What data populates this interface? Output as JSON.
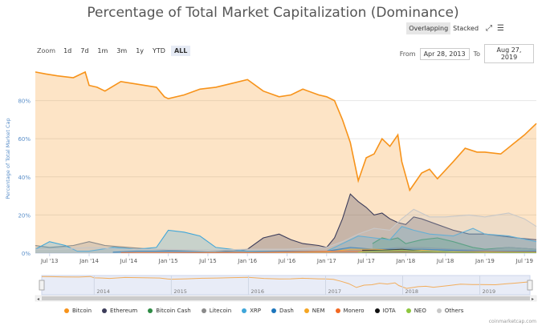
{
  "header": {
    "title": "Percentage of Total Market Capitalization (Dominance)",
    "overlapping": "Overlapping",
    "stacked": "Stacked",
    "expand_icon": "expand-icon",
    "menu_icon": "hamburger-menu-icon"
  },
  "zoom": {
    "label": "Zoom",
    "buttons": [
      "1d",
      "7d",
      "1m",
      "3m",
      "1y",
      "YTD",
      "ALL"
    ],
    "selected": "ALL"
  },
  "range": {
    "from_label": "From",
    "from": "Apr 28, 2013",
    "to_label": "To",
    "to": "Aug 27, 2019"
  },
  "credit": "coinmarketcap.com",
  "navigator_years": [
    "2014",
    "2015",
    "2016",
    "2017",
    "2018",
    "2019"
  ],
  "chart_data": {
    "type": "area",
    "title": "Percentage of Total Market Capitalization (Dominance)",
    "ylabel": "Percentage of Total Market Cap",
    "ylim": [
      0,
      100
    ],
    "yticks": [
      0,
      20,
      40,
      60,
      80
    ],
    "ytick_labels": [
      "0%",
      "20%",
      "40%",
      "60%",
      "80%"
    ],
    "xlim": [
      2013.32,
      2019.65
    ],
    "xticks": [
      2013.5,
      2014.0,
      2014.5,
      2015.0,
      2015.5,
      2016.0,
      2016.5,
      2017.0,
      2017.5,
      2018.0,
      2018.5,
      2019.0,
      2019.5
    ],
    "xtick_labels": [
      "Jul '13",
      "Jan '14",
      "Jul '14",
      "Jan '15",
      "Jul '15",
      "Jan '16",
      "Jul '16",
      "Jan '17",
      "Jul '17",
      "Jan '18",
      "Jul '18",
      "Jan '19",
      "Jul '19"
    ],
    "mode": "overlapping",
    "legend_position": "bottom",
    "series": [
      {
        "name": "Bitcoin",
        "color": "#f7931a",
        "x": [
          2013.32,
          2013.45,
          2013.6,
          2013.8,
          2013.95,
          2014.0,
          2014.1,
          2014.2,
          2014.4,
          2014.55,
          2014.7,
          2014.85,
          2014.95,
          2015.0,
          2015.2,
          2015.4,
          2015.6,
          2015.8,
          2016.0,
          2016.2,
          2016.4,
          2016.55,
          2016.7,
          2016.9,
          2017.0,
          2017.1,
          2017.2,
          2017.3,
          2017.4,
          2017.5,
          2017.6,
          2017.7,
          2017.8,
          2017.9,
          2017.95,
          2018.05,
          2018.2,
          2018.3,
          2018.4,
          2018.6,
          2018.75,
          2018.9,
          2019.0,
          2019.2,
          2019.35,
          2019.5,
          2019.65
        ],
        "values": [
          95,
          94,
          93,
          92,
          95,
          88,
          87,
          85,
          90,
          89,
          88,
          87,
          82,
          81,
          83,
          86,
          87,
          89,
          91,
          85,
          82,
          83,
          86,
          83,
          82,
          80,
          70,
          58,
          38,
          50,
          52,
          60,
          56,
          62,
          48,
          33,
          42,
          44,
          39,
          48,
          55,
          53,
          53,
          52,
          57,
          62,
          68
        ]
      },
      {
        "name": "Ethereum",
        "color": "#3c3c5a",
        "x": [
          2015.6,
          2015.8,
          2016.0,
          2016.2,
          2016.4,
          2016.55,
          2016.7,
          2016.9,
          2017.0,
          2017.1,
          2017.2,
          2017.3,
          2017.4,
          2017.5,
          2017.6,
          2017.7,
          2017.8,
          2017.9,
          2018.0,
          2018.1,
          2018.2,
          2018.4,
          2018.6,
          2018.8,
          2019.0,
          2019.2,
          2019.4,
          2019.65
        ],
        "values": [
          0.5,
          1,
          2,
          8,
          10,
          7,
          5,
          4,
          3,
          8,
          18,
          31,
          27,
          24,
          20,
          21,
          18,
          16,
          15,
          19,
          18,
          15,
          12,
          10,
          10,
          9,
          8,
          7
        ]
      },
      {
        "name": "Bitcoin Cash",
        "color": "#2e8b44",
        "x": [
          2017.58,
          2017.7,
          2017.8,
          2017.9,
          2018.0,
          2018.2,
          2018.4,
          2018.6,
          2018.85,
          2019.0,
          2019.3,
          2019.65
        ],
        "values": [
          5,
          8,
          7,
          8,
          5,
          7,
          8,
          6,
          3,
          2,
          3,
          2
        ]
      },
      {
        "name": "Litecoin",
        "color": "#8a8a8a",
        "x": [
          2013.32,
          2013.5,
          2013.8,
          2014.0,
          2014.2,
          2014.5,
          2014.8,
          2015.0,
          2015.5,
          2016.0,
          2016.5,
          2017.0,
          2017.3,
          2017.6,
          2017.9,
          2018.2,
          2018.6,
          2019.0,
          2019.3,
          2019.65
        ],
        "values": [
          4,
          3,
          4,
          6,
          4,
          3,
          2,
          1.5,
          1.5,
          1,
          1,
          1,
          2,
          1.5,
          3,
          3,
          2,
          1.5,
          3,
          2
        ]
      },
      {
        "name": "XRP",
        "color": "#3fa6d9",
        "x": [
          2013.32,
          2013.5,
          2013.7,
          2013.85,
          2014.0,
          2014.3,
          2014.6,
          2014.85,
          2015.0,
          2015.2,
          2015.4,
          2015.6,
          2016.0,
          2016.5,
          2017.0,
          2017.2,
          2017.4,
          2017.6,
          2017.8,
          2017.95,
          2018.1,
          2018.3,
          2018.6,
          2018.85,
          2019.0,
          2019.3,
          2019.65
        ],
        "values": [
          2,
          6,
          4,
          1,
          1,
          3,
          2,
          3,
          12,
          11,
          9,
          3,
          1,
          1,
          1,
          5,
          9,
          8,
          7,
          14,
          12,
          10,
          9,
          13,
          10,
          9,
          6
        ]
      },
      {
        "name": "Dash",
        "color": "#1c75bc",
        "x": [
          2014.3,
          2014.6,
          2015.0,
          2015.5,
          2016.0,
          2016.5,
          2017.0,
          2017.3,
          2017.6,
          2017.9,
          2018.2,
          2018.6,
          2019.0,
          2019.65
        ],
        "values": [
          0.5,
          1,
          1,
          0.5,
          0.5,
          1,
          1,
          3,
          2,
          2,
          2,
          1.5,
          1,
          1
        ]
      },
      {
        "name": "NEM",
        "color": "#f5a623",
        "x": [
          2015.3,
          2016.0,
          2016.5,
          2017.0,
          2017.3,
          2017.6,
          2017.9,
          2018.2,
          2018.6,
          2019.0,
          2019.65
        ],
        "values": [
          0.2,
          0.3,
          0.5,
          0.5,
          2,
          2,
          1.5,
          1.5,
          0.6,
          0.3,
          0.2
        ]
      },
      {
        "name": "Monero",
        "color": "#f26822",
        "x": [
          2014.4,
          2015.0,
          2016.0,
          2016.7,
          2017.0,
          2017.5,
          2018.0,
          2018.6,
          2019.0,
          2019.65
        ],
        "values": [
          0.3,
          0.3,
          0.3,
          0.8,
          1,
          1,
          1,
          0.8,
          0.8,
          0.6
        ]
      },
      {
        "name": "IOTA",
        "color": "#111111",
        "x": [
          2017.45,
          2017.7,
          2017.95,
          2018.2,
          2018.6,
          2019.0,
          2019.65
        ],
        "values": [
          1.5,
          1.5,
          2,
          1,
          0.6,
          0.4,
          0.3
        ]
      },
      {
        "name": "NEO",
        "color": "#8dc63f",
        "x": [
          2017.4,
          2017.6,
          2017.95,
          2018.2,
          2018.6,
          2019.0,
          2019.65
        ],
        "values": [
          0.5,
          1,
          1.5,
          1,
          0.6,
          0.4,
          0.3
        ]
      },
      {
        "name": "Others",
        "color": "#c8c8c8",
        "x": [
          2013.32,
          2013.6,
          2014.0,
          2014.5,
          2015.0,
          2015.5,
          2016.0,
          2016.5,
          2017.0,
          2017.2,
          2017.4,
          2017.6,
          2017.8,
          2017.95,
          2018.1,
          2018.3,
          2018.5,
          2018.8,
          2019.0,
          2019.3,
          2019.5,
          2019.65
        ],
        "values": [
          2,
          2,
          3,
          2,
          2,
          1.5,
          2,
          2,
          3,
          6,
          10,
          13,
          12,
          18,
          23,
          19,
          19,
          20,
          19,
          21,
          18,
          14
        ]
      }
    ]
  }
}
